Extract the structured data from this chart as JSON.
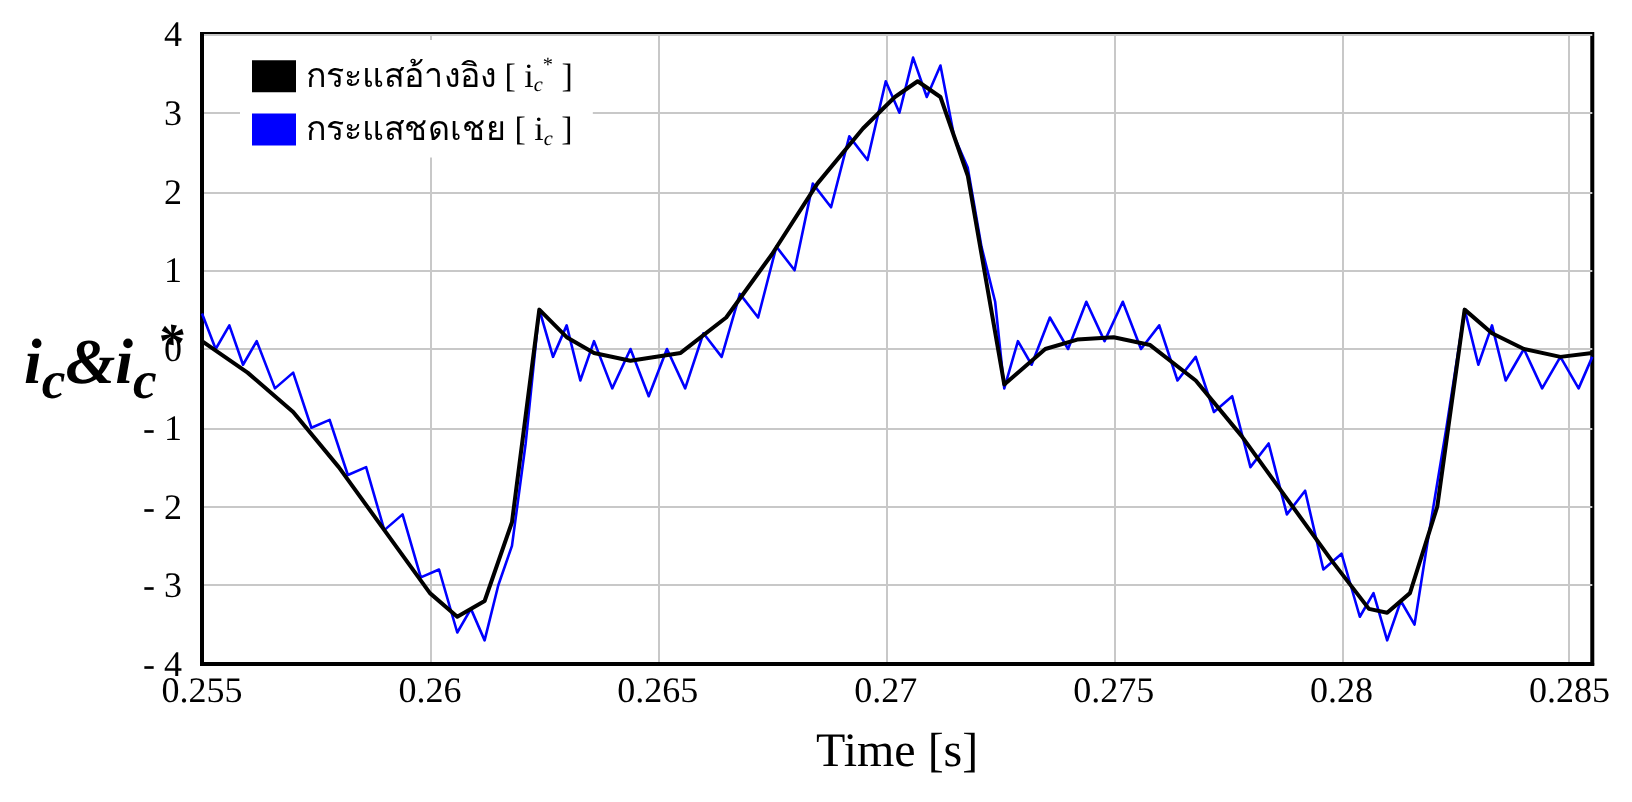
{
  "chart_data": {
    "type": "line",
    "xlabel": "Time [s]",
    "ylabel": "i$_{c}$&i$_{c}$$^{*}$",
    "xlim": [
      0.255,
      0.2855
    ],
    "xticks": [
      0.255,
      0.26,
      0.265,
      0.27,
      0.275,
      0.28,
      0.285
    ],
    "ylim": [
      -4,
      4
    ],
    "yticks": [
      {
        "value": -4,
        "label": "- 4"
      },
      {
        "value": -3,
        "label": "- 3"
      },
      {
        "value": -2,
        "label": "- 2"
      },
      {
        "value": -1,
        "label": "- 1"
      },
      0,
      1,
      2,
      3,
      4
    ],
    "grid": true,
    "legend": "top left",
    "marker": "none",
    "line_style": "solid",
    "series": [
      {
        "name": "กระแสอ้างอิง [ i$_{c}$$^{*}$ ]",
        "color": "#000000",
        "x": [
          0.255,
          0.256,
          0.257,
          0.258,
          0.259,
          0.26,
          0.2606,
          0.2612,
          0.2618,
          0.2624,
          0.263,
          0.2636,
          0.2644,
          0.2655,
          0.2665,
          0.2675,
          0.2685,
          0.2695,
          0.2702,
          0.2707,
          0.2712,
          0.2718,
          0.2726,
          0.2735,
          0.2742,
          0.275,
          0.2758,
          0.2768,
          0.2778,
          0.2788,
          0.2798,
          0.2806,
          0.281,
          0.2815,
          0.2821,
          0.2827,
          0.2833,
          0.284,
          0.2848,
          0.2855
        ],
        "values": [
          0.1,
          -0.3,
          -0.8,
          -1.5,
          -2.3,
          -3.1,
          -3.4,
          -3.2,
          -2.2,
          0.5,
          0.15,
          -0.05,
          -0.15,
          -0.05,
          0.4,
          1.2,
          2.1,
          2.8,
          3.2,
          3.4,
          3.2,
          2.2,
          -0.45,
          0,
          0.12,
          0.15,
          0.05,
          -0.4,
          -1.1,
          -1.9,
          -2.7,
          -3.3,
          -3.35,
          -3.1,
          -2,
          0.5,
          0.2,
          0,
          -0.1,
          -0.05
        ]
      },
      {
        "name": "กระแสชดเชย [ i$_{c}$ ]",
        "color": "#0000ff",
        "x": [
          0.255,
          0.2553,
          0.2556,
          0.2559,
          0.2562,
          0.2566,
          0.257,
          0.2574,
          0.2578,
          0.2582,
          0.2586,
          0.259,
          0.2594,
          0.2598,
          0.2602,
          0.2606,
          0.2609,
          0.2612,
          0.2615,
          0.2618,
          0.2621,
          0.2624,
          0.2627,
          0.263,
          0.2633,
          0.2636,
          0.264,
          0.2644,
          0.2648,
          0.2652,
          0.2656,
          0.266,
          0.2664,
          0.2668,
          0.2672,
          0.2676,
          0.268,
          0.2684,
          0.2688,
          0.2692,
          0.2696,
          0.27,
          0.2703,
          0.2706,
          0.2709,
          0.2712,
          0.2715,
          0.2718,
          0.2721,
          0.2724,
          0.2726,
          0.2729,
          0.2732,
          0.2736,
          0.274,
          0.2744,
          0.2748,
          0.2752,
          0.2756,
          0.276,
          0.2764,
          0.2768,
          0.2772,
          0.2776,
          0.278,
          0.2784,
          0.2788,
          0.2792,
          0.2796,
          0.28,
          0.2804,
          0.2807,
          0.281,
          0.2813,
          0.2816,
          0.2819,
          0.2823,
          0.2827,
          0.283,
          0.2833,
          0.2836,
          0.284,
          0.2844,
          0.2848,
          0.2852,
          0.2855
        ],
        "values": [
          0.45,
          0,
          0.3,
          -0.2,
          0.1,
          -0.5,
          -0.3,
          -1,
          -0.9,
          -1.6,
          -1.5,
          -2.3,
          -2.1,
          -2.9,
          -2.8,
          -3.6,
          -3.3,
          -3.7,
          -3,
          -2.5,
          -1.2,
          0.5,
          -0.1,
          0.3,
          -0.4,
          0.1,
          -0.5,
          0,
          -0.6,
          0,
          -0.5,
          0.2,
          -0.1,
          0.7,
          0.4,
          1.3,
          1,
          2.1,
          1.8,
          2.7,
          2.4,
          3.4,
          3,
          3.7,
          3.2,
          3.6,
          2.7,
          2.3,
          1.3,
          0.6,
          -0.5,
          0.1,
          -0.2,
          0.4,
          0,
          0.6,
          0.1,
          0.6,
          0,
          0.3,
          -0.4,
          -0.1,
          -0.8,
          -0.6,
          -1.5,
          -1.2,
          -2.1,
          -1.8,
          -2.8,
          -2.6,
          -3.4,
          -3.1,
          -3.7,
          -3.2,
          -3.5,
          -2.4,
          -1,
          0.5,
          -0.2,
          0.3,
          -0.4,
          0,
          -0.5,
          -0.1,
          -0.5,
          -0.1
        ]
      }
    ]
  }
}
